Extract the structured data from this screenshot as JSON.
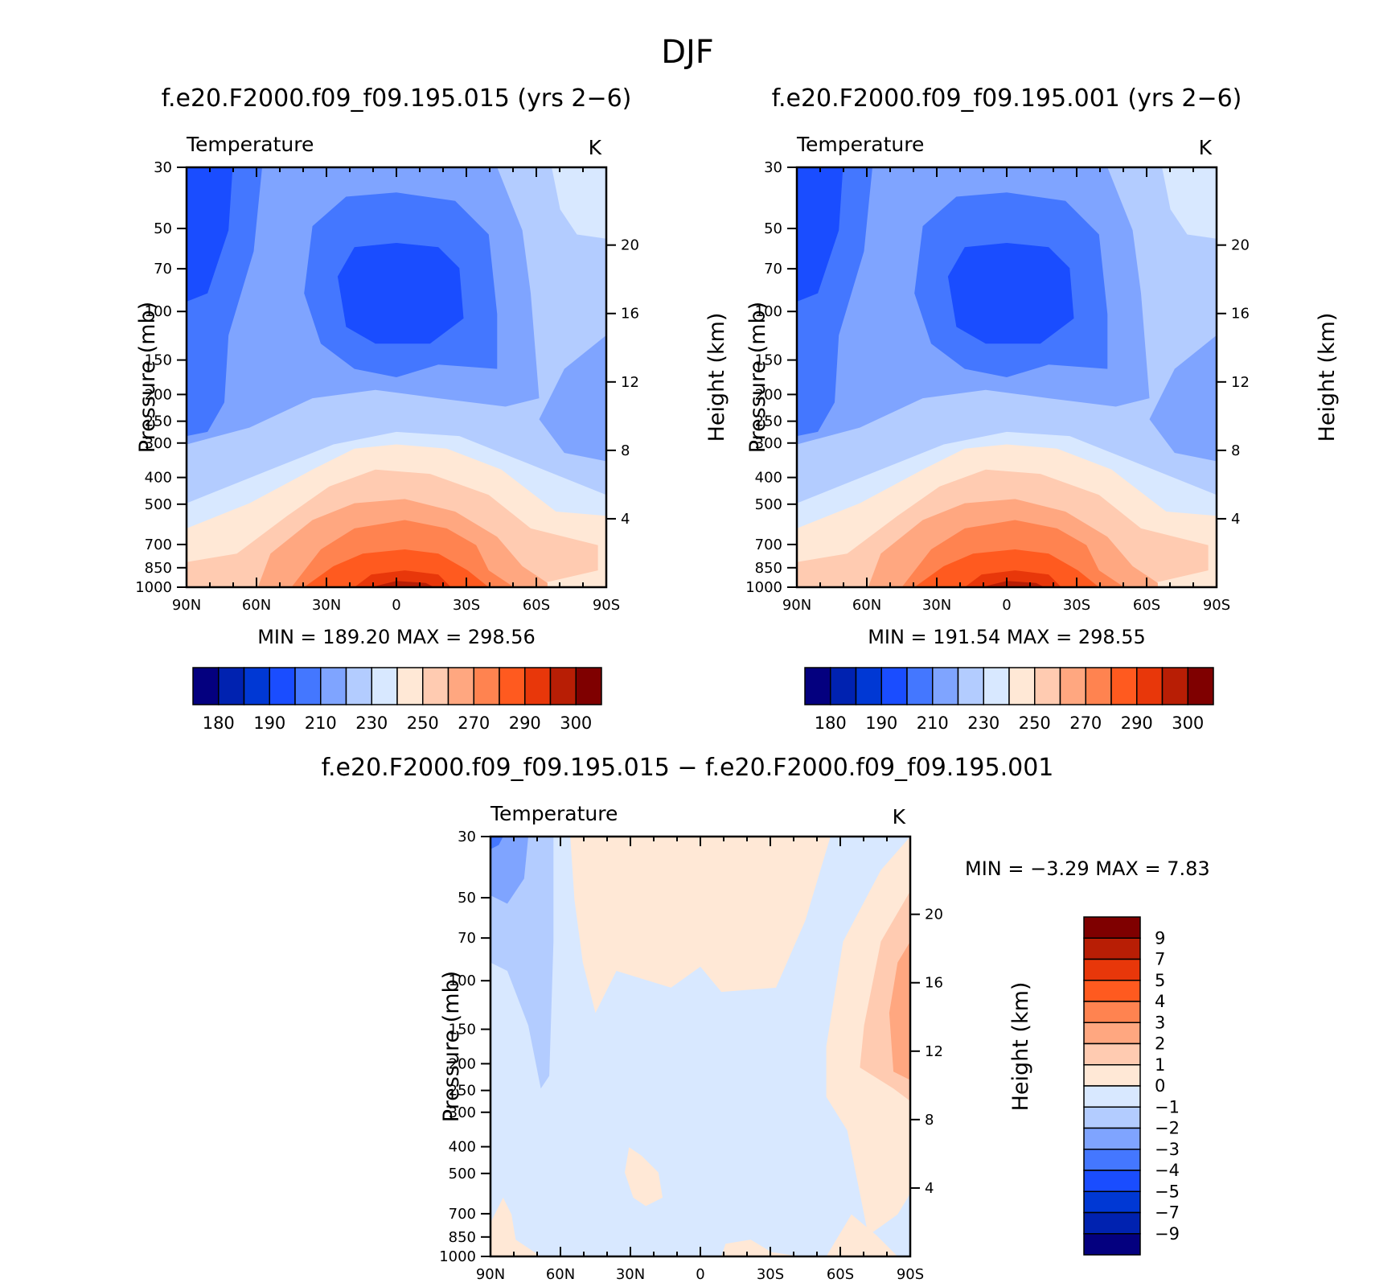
{
  "page_title": "DJF",
  "panels": [
    {
      "title": "f.e20.F2000.f09_f09.195.015 (yrs 2−6)",
      "variable": "Temperature",
      "units": "K",
      "stats": "MIN =  189.20   MAX =  298.56"
    },
    {
      "title": "f.e20.F2000.f09_f09.195.001 (yrs 2−6)",
      "variable": "Temperature",
      "units": "K",
      "stats": "MIN =  191.54   MAX =  298.55"
    },
    {
      "title": "f.e20.F2000.f09_f09.195.015 − f.e20.F2000.f09_f09.195.001",
      "variable": "Temperature",
      "units": "K",
      "stats": "MIN =    −3.29    MAX =     7.83"
    }
  ],
  "colors": {
    "abs_scale": [
      "#04007f",
      "#0022b0",
      "#0038d4",
      "#1a4dff",
      "#4477ff",
      "#7fa4ff",
      "#b3ccff",
      "#d8e8ff",
      "#ffe8d6",
      "#ffcbb1",
      "#ffa780",
      "#ff8350",
      "#ff5a1f",
      "#e8370a",
      "#b81e05",
      "#7f0000"
    ],
    "diff_scale": [
      "#04007f",
      "#0022b0",
      "#0038d4",
      "#1a4dff",
      "#4477ff",
      "#7fa4ff",
      "#b3ccff",
      "#d8e8ff",
      "#ffe8d6",
      "#ffcbb1",
      "#ffa780",
      "#ff8350",
      "#ff5a1f",
      "#e8370a",
      "#b81e05",
      "#7f0000"
    ]
  },
  "chart_data": [
    {
      "type": "heatmap",
      "title": "f.e20.F2000.f09_f09.195.015 (yrs 2−6)",
      "xlabel": "",
      "ylabel": "Pressure (mb)",
      "ylabel_right": "Height (km)",
      "x_ticks": [
        "90N",
        "60N",
        "30N",
        "0",
        "30S",
        "60S",
        "90S"
      ],
      "x_values": [
        90,
        60,
        30,
        0,
        -30,
        -60,
        -90
      ],
      "y_ticks": [
        30,
        50,
        70,
        100,
        150,
        200,
        250,
        300,
        400,
        500,
        700,
        850,
        1000
      ],
      "y_scale": "log",
      "ylim": [
        1000,
        30
      ],
      "right_ticks": [
        20,
        16,
        12,
        8,
        4
      ],
      "levels": [
        180,
        185,
        190,
        200,
        210,
        220,
        230,
        240,
        250,
        260,
        270,
        280,
        290,
        295,
        300
      ],
      "level_labels": [
        "180",
        "190",
        "210",
        "230",
        "250",
        "270",
        "290",
        "300"
      ],
      "min": 189.2,
      "max": 298.56
    },
    {
      "type": "heatmap",
      "title": "f.e20.F2000.f09_f09.195.001 (yrs 2−6)",
      "xlabel": "",
      "ylabel": "Pressure (mb)",
      "ylabel_right": "Height (km)",
      "x_ticks": [
        "90N",
        "60N",
        "30N",
        "0",
        "30S",
        "60S",
        "90S"
      ],
      "x_values": [
        90,
        60,
        30,
        0,
        -30,
        -60,
        -90
      ],
      "y_ticks": [
        30,
        50,
        70,
        100,
        150,
        200,
        250,
        300,
        400,
        500,
        700,
        850,
        1000
      ],
      "y_scale": "log",
      "ylim": [
        1000,
        30
      ],
      "right_ticks": [
        20,
        16,
        12,
        8,
        4
      ],
      "levels": [
        180,
        185,
        190,
        200,
        210,
        220,
        230,
        240,
        250,
        260,
        270,
        280,
        290,
        295,
        300
      ],
      "level_labels": [
        "180",
        "190",
        "210",
        "230",
        "250",
        "270",
        "290",
        "300"
      ],
      "min": 191.54,
      "max": 298.55
    },
    {
      "type": "heatmap",
      "title": "f.e20.F2000.f09_f09.195.015 − f.e20.F2000.f09_f09.195.001",
      "xlabel": "",
      "ylabel": "Pressure (mb)",
      "ylabel_right": "Height (km)",
      "x_ticks": [
        "90N",
        "60N",
        "30N",
        "0",
        "30S",
        "60S",
        "90S"
      ],
      "x_values": [
        90,
        60,
        30,
        0,
        -30,
        -60,
        -90
      ],
      "y_ticks": [
        30,
        50,
        70,
        100,
        150,
        200,
        250,
        300,
        400,
        500,
        700,
        850,
        1000
      ],
      "y_scale": "log",
      "ylim": [
        1000,
        30
      ],
      "right_ticks": [
        20,
        16,
        12,
        8,
        4
      ],
      "levels": [
        -9,
        -7,
        -5,
        -4,
        -3,
        -2,
        -1,
        0,
        1,
        2,
        3,
        4,
        5,
        7,
        9
      ],
      "level_labels": [
        "9",
        "7",
        "5",
        "4",
        "3",
        "2",
        "1",
        "0",
        "−1",
        "−2",
        "−3",
        "−4",
        "−5",
        "−7",
        "−9"
      ],
      "min": -3.29,
      "max": 7.83
    }
  ]
}
